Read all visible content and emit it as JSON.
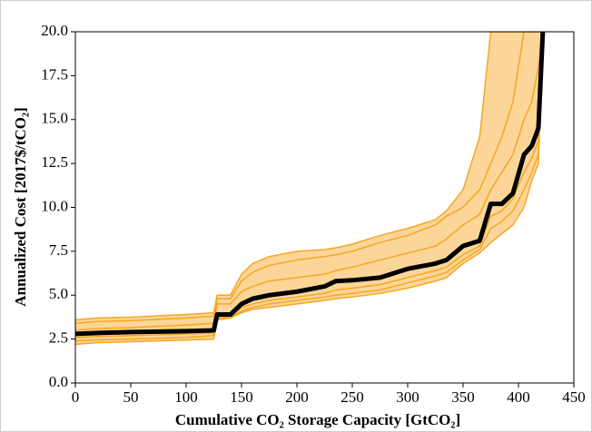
{
  "chart_data": {
    "type": "band-line",
    "xlabel": "Cumulative CO₂ Storage Capacity [GtCO₂]",
    "ylabel": "Annualized Cost [2017$/tCO₂]",
    "x": [
      0,
      20,
      50,
      100,
      125,
      128,
      140,
      150,
      160,
      175,
      200,
      225,
      235,
      250,
      275,
      300,
      325,
      335,
      350,
      365,
      375,
      385,
      395,
      405,
      412,
      418,
      422
    ],
    "band": {
      "color": "#fcd699",
      "edge_color": "#f5a623",
      "upper": [
        3.6,
        3.7,
        3.75,
        3.9,
        4.0,
        5.0,
        5.0,
        6.2,
        6.8,
        7.2,
        7.5,
        7.6,
        7.7,
        7.9,
        8.4,
        8.8,
        9.3,
        9.8,
        11.0,
        14.0,
        20,
        20,
        20,
        20,
        20,
        20,
        20
      ],
      "lower": [
        2.2,
        2.3,
        2.35,
        2.45,
        2.5,
        3.6,
        3.7,
        4.0,
        4.2,
        4.3,
        4.5,
        4.7,
        4.8,
        4.9,
        5.1,
        5.4,
        5.8,
        6.0,
        6.8,
        7.4,
        8.0,
        8.5,
        9.0,
        10.0,
        11.5,
        12.5,
        20
      ]
    },
    "series": [
      {
        "color": "#f5a623",
        "width": 1.5,
        "values": [
          3.4,
          3.5,
          3.55,
          3.7,
          3.8,
          4.8,
          4.8,
          5.8,
          6.3,
          6.7,
          7.0,
          7.2,
          7.3,
          7.5,
          8.0,
          8.4,
          9.0,
          9.5,
          10.0,
          11.0,
          12.5,
          14.0,
          16.0,
          20,
          20,
          20,
          20
        ]
      },
      {
        "color": "#f5a623",
        "width": 1.5,
        "values": [
          3.0,
          3.1,
          3.15,
          3.3,
          3.4,
          4.5,
          4.5,
          5.2,
          5.5,
          5.8,
          6.0,
          6.2,
          6.4,
          6.6,
          7.0,
          7.4,
          7.8,
          8.2,
          9.0,
          9.6,
          11.0,
          12.0,
          13.0,
          15.0,
          16.0,
          18.0,
          20
        ]
      },
      {
        "color": "#f5a623",
        "width": 1.5,
        "values": [
          2.6,
          2.65,
          2.7,
          2.8,
          2.85,
          3.8,
          3.8,
          4.3,
          4.5,
          4.7,
          4.9,
          5.1,
          5.3,
          5.4,
          5.6,
          6.0,
          6.4,
          6.6,
          7.3,
          7.8,
          9.5,
          9.8,
          10.5,
          12.0,
          12.8,
          13.8,
          20
        ]
      },
      {
        "color": "#f5a623",
        "width": 1.5,
        "values": [
          2.4,
          2.45,
          2.5,
          2.6,
          2.7,
          3.7,
          3.75,
          4.1,
          4.3,
          4.5,
          4.7,
          4.9,
          5.0,
          5.1,
          5.3,
          5.7,
          6.1,
          6.3,
          7.0,
          7.6,
          8.8,
          9.2,
          9.8,
          11.0,
          12.0,
          13.0,
          20
        ]
      },
      {
        "color": "#000000",
        "width": 5,
        "values": [
          2.8,
          2.85,
          2.9,
          2.95,
          3.0,
          3.9,
          3.9,
          4.5,
          4.8,
          5.0,
          5.2,
          5.5,
          5.8,
          5.85,
          6.0,
          6.5,
          6.8,
          7.0,
          7.8,
          8.1,
          10.2,
          10.2,
          10.8,
          13.0,
          13.5,
          14.5,
          20
        ]
      }
    ],
    "xlim": [
      0,
      450
    ],
    "xticks": [
      0,
      50,
      100,
      150,
      200,
      250,
      300,
      350,
      400,
      450
    ],
    "ylim": [
      0,
      20
    ],
    "yticks": [
      {
        "value": 0,
        "label": "0.0"
      },
      2.5,
      {
        "value": 5,
        "label": "5.0"
      },
      7.5,
      {
        "value": 10,
        "label": "10.0"
      },
      12.5,
      {
        "value": 15,
        "label": "15.0"
      },
      17.5,
      {
        "value": 20,
        "label": "20.0"
      }
    ]
  }
}
